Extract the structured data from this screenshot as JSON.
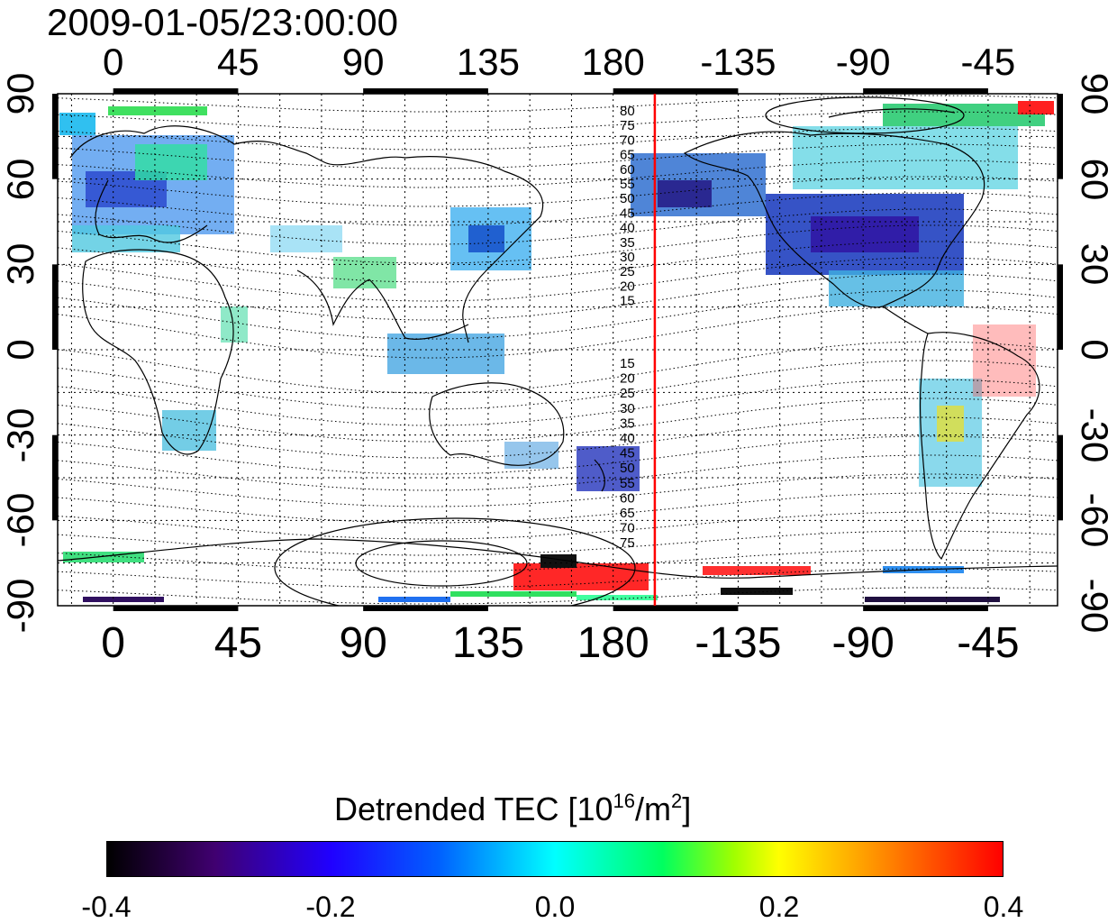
{
  "timestamp": "2009-01-05/23:00:00",
  "top_lon_ticks": [
    "0",
    "45",
    "90",
    "135",
    "180",
    "-135",
    "-90",
    "-45"
  ],
  "bottom_lon_ticks": [
    "0",
    "45",
    "90",
    "135",
    "180",
    "-135",
    "-90",
    "-45"
  ],
  "left_lat_ticks": [
    "90",
    "60",
    "30",
    "0",
    "-30",
    "-60",
    "-90"
  ],
  "right_lat_ticks": [
    "90",
    "60",
    "30",
    "0",
    "-30",
    "-60",
    "-90"
  ],
  "contour_labels_north": [
    "80",
    "75",
    "70",
    "65",
    "60",
    "55",
    "50",
    "45",
    "40",
    "35",
    "30",
    "25",
    "20",
    "15"
  ],
  "contour_labels_south": [
    "15",
    "20",
    "25",
    "30",
    "35",
    "40",
    "45",
    "50",
    "55",
    "60",
    "65",
    "70",
    "75"
  ],
  "terminator_longitude": 195,
  "colorbar": {
    "title_prefix": "Detrended TEC  [10",
    "title_exp1": "16",
    "title_mid": "/m",
    "title_exp2": "2",
    "title_suffix": "]",
    "tick_labels": [
      "-0.4",
      "-0.2",
      "0.0",
      "0.2",
      "0.4"
    ],
    "min": -0.4,
    "max": 0.4
  },
  "colors": {
    "terminator": "#ff0000",
    "low": "#000000",
    "mid": "#00ffff",
    "high": "#ff0000"
  }
}
